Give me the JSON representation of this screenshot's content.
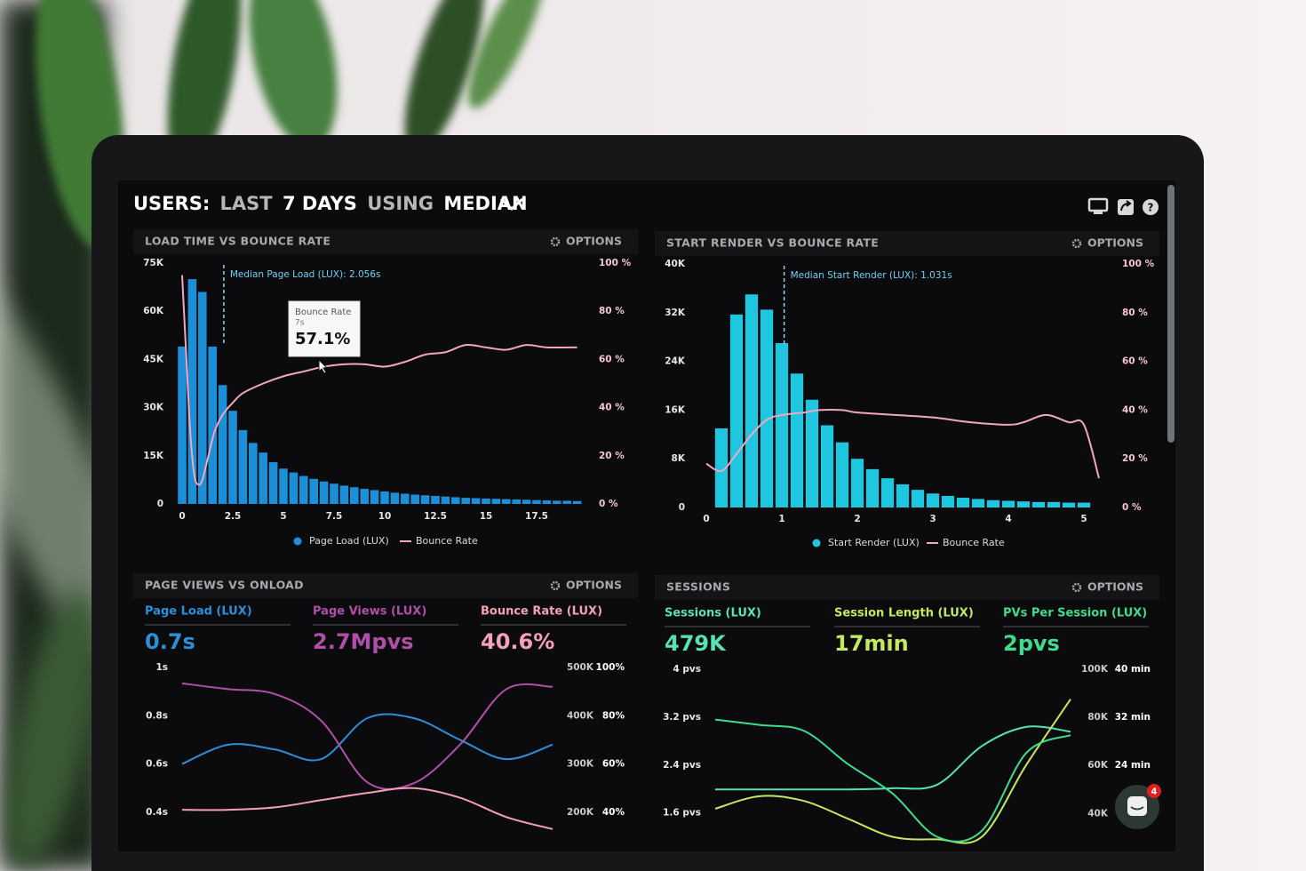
{
  "header": {
    "title_parts": [
      "USERS:",
      "LAST",
      "7 DAYS",
      "USING",
      "MEDIAN"
    ]
  },
  "chat_badge": "4",
  "chart_data": [
    {
      "type": "bar",
      "title": "LOAD TIME VS BOUNCE RATE",
      "options": "OPTIONS",
      "xlim": [
        -0.25,
        19.75
      ],
      "xticks": [
        0,
        2.5,
        5,
        7.5,
        10,
        12.5,
        15,
        17.5
      ],
      "ylim": [
        0,
        75000
      ],
      "yticks": [
        0,
        {
          "value": 15000,
          "label": "15K"
        },
        {
          "value": 30000,
          "label": "30K"
        },
        {
          "value": 45000,
          "label": "45K"
        },
        {
          "value": 60000,
          "label": "60K"
        },
        {
          "value": 75000,
          "label": "75K"
        }
      ],
      "y2lim": [
        0,
        100
      ],
      "y2ticks": [
        {
          "value": 0,
          "label": "0 %"
        },
        {
          "value": 20,
          "label": "20 %"
        },
        {
          "value": 40,
          "label": "40 %"
        },
        {
          "value": 60,
          "label": "60 %"
        },
        {
          "value": 80,
          "label": "80 %"
        },
        {
          "value": 100,
          "label": "100 %"
        }
      ],
      "annotation": {
        "text": "Median Page Load (LUX): 2.056s",
        "x": 2.056
      },
      "tooltip": {
        "title": "Bounce Rate",
        "subtitle": "7s",
        "value": "57.1%"
      },
      "series": [
        {
          "name": "Page Load (LUX)",
          "color": "#1c8fd9",
          "type": "bar",
          "x": [
            0,
            0.5,
            1,
            1.5,
            2,
            2.5,
            3,
            3.5,
            4,
            4.5,
            5,
            5.5,
            6,
            6.5,
            7,
            7.5,
            8,
            8.5,
            9,
            9.5,
            10,
            10.5,
            11,
            11.5,
            12,
            12.5,
            13,
            13.5,
            14,
            14.5,
            15,
            15.5,
            16,
            16.5,
            17,
            17.5,
            18,
            18.5,
            19,
            19.5
          ],
          "values": [
            49000,
            70000,
            66000,
            49000,
            37000,
            29000,
            23000,
            19000,
            16000,
            13000,
            11000,
            9800,
            8700,
            7800,
            7000,
            6300,
            5700,
            5200,
            4700,
            4300,
            3900,
            3500,
            3200,
            2900,
            2700,
            2500,
            2300,
            2100,
            1900,
            1800,
            1700,
            1600,
            1500,
            1400,
            1300,
            1200,
            1100,
            1000,
            1000,
            900
          ]
        },
        {
          "name": "Bounce Rate",
          "color": "#f2a7bf",
          "type": "line",
          "axis": "y2",
          "x": [
            0,
            0.2,
            0.4,
            0.6,
            0.8,
            1,
            1.3,
            1.6,
            2,
            2.5,
            3,
            4,
            5,
            6,
            7,
            8,
            9,
            10,
            11,
            12,
            13,
            14,
            15,
            16,
            17,
            18,
            19.5
          ],
          "values": [
            95,
            62,
            30,
            12,
            8,
            10,
            20,
            30,
            37,
            42,
            46,
            50,
            53,
            55,
            57,
            58,
            58,
            57,
            59,
            62,
            63,
            66,
            65,
            64,
            66,
            65,
            65
          ]
        }
      ]
    },
    {
      "type": "bar",
      "title": "START RENDER VS BOUNCE RATE",
      "options": "OPTIONS",
      "xlim": [
        -0.1,
        5.3
      ],
      "xticks": [
        0,
        1,
        2,
        3,
        4,
        5
      ],
      "ylim": [
        0,
        40000
      ],
      "yticks": [
        0,
        {
          "value": 8000,
          "label": "8K"
        },
        {
          "value": 16000,
          "label": "16K"
        },
        {
          "value": 24000,
          "label": "24K"
        },
        {
          "value": 32000,
          "label": "32K"
        },
        {
          "value": 40000,
          "label": "40K"
        }
      ],
      "y2lim": [
        0,
        100
      ],
      "y2ticks": [
        {
          "value": 0,
          "label": "0 %"
        },
        {
          "value": 20,
          "label": "20 %"
        },
        {
          "value": 40,
          "label": "40 %"
        },
        {
          "value": 60,
          "label": "60 %"
        },
        {
          "value": 80,
          "label": "80 %"
        },
        {
          "value": 100,
          "label": "100 %"
        }
      ],
      "annotation": {
        "text": "Median Start Render (LUX): 1.031s",
        "x": 1.031
      },
      "series": [
        {
          "name": "Start Render (LUX)",
          "color": "#1ec6e0",
          "type": "bar",
          "x": [
            0.2,
            0.4,
            0.6,
            0.8,
            1,
            1.2,
            1.4,
            1.6,
            1.8,
            2,
            2.2,
            2.4,
            2.6,
            2.8,
            3,
            3.2,
            3.4,
            3.6,
            3.8,
            4,
            4.2,
            4.4,
            4.6,
            4.8,
            5
          ],
          "values": [
            13000,
            31700,
            35000,
            32500,
            27000,
            22000,
            17700,
            13500,
            10700,
            8000,
            6300,
            4800,
            3800,
            2900,
            2300,
            1900,
            1600,
            1400,
            1200,
            1100,
            1000,
            900,
            900,
            800,
            800
          ]
        },
        {
          "name": "Bounce Rate",
          "color": "#f2a7bf",
          "type": "line",
          "axis": "y2",
          "x": [
            0,
            0.2,
            0.4,
            0.6,
            0.8,
            1,
            1.3,
            1.5,
            1.8,
            2,
            2.5,
            3,
            3.5,
            4,
            4.2,
            4.5,
            4.8,
            5,
            5.2
          ],
          "values": [
            18,
            15,
            22,
            30,
            36,
            38,
            39,
            40,
            40,
            39,
            38,
            37,
            35,
            34,
            35,
            38,
            35,
            34,
            12
          ]
        }
      ]
    },
    {
      "type": "line",
      "title": "PAGE VIEWS VS ONLOAD",
      "options": "OPTIONS",
      "categories": [
        null,
        null,
        null,
        null,
        null,
        null,
        null,
        null,
        null
      ],
      "ylim": [
        0.3,
        1
      ],
      "yticks": [
        {
          "value": 1,
          "label": "1s"
        },
        {
          "value": 0.8,
          "label": "0.8s"
        },
        {
          "value": 0.6,
          "label": "0.6s"
        },
        {
          "value": 0.4,
          "label": "0.4s"
        }
      ],
      "y2lim": [
        150000,
        500000
      ],
      "y2ticks": [
        {
          "value": 500000,
          "label": "500K"
        },
        {
          "value": 400000,
          "label": "400K"
        },
        {
          "value": 300000,
          "label": "300K"
        },
        {
          "value": 200000,
          "label": "200K"
        }
      ],
      "y3lim": [
        30,
        100
      ],
      "y3ticks": [
        {
          "value": 100,
          "label": "100%"
        },
        {
          "value": 80,
          "label": "80%"
        },
        {
          "value": 60,
          "label": "60%"
        },
        {
          "value": 40,
          "label": "40%"
        }
      ],
      "series": [
        {
          "name": "Page Load (LUX)",
          "kpi": "0.7s",
          "color": "#2d8fd8",
          "values": [
            0.6,
            0.68,
            0.66,
            0.62,
            0.79,
            0.79,
            0.7,
            0.62,
            0.68
          ]
        },
        {
          "name": "Page Views (LUX)",
          "kpi": "2.7Mpvs",
          "color": "#b14ea9",
          "axis": "y2",
          "values": [
            467000,
            455000,
            445000,
            390000,
            262000,
            260000,
            340000,
            455000,
            460000
          ]
        },
        {
          "name": "Bounce Rate (LUX)",
          "kpi": "40.6%",
          "color": "#f4a0b6",
          "axis": "y3",
          "values": [
            41,
            41,
            42,
            45,
            48,
            50,
            46,
            38,
            33
          ]
        }
      ]
    },
    {
      "type": "line",
      "title": "SESSIONS",
      "options": "OPTIONS",
      "categories": [
        null,
        null,
        null,
        null,
        null,
        null,
        null,
        null,
        null
      ],
      "ylim": [
        1.15,
        4
      ],
      "yticks": [
        {
          "value": 4,
          "label": "4 pvs"
        },
        {
          "value": 3.2,
          "label": "3.2 pvs"
        },
        {
          "value": 2.4,
          "label": "2.4 pvs"
        },
        {
          "value": 1.6,
          "label": "1.6 pvs"
        }
      ],
      "y2lim": [
        29000,
        100000
      ],
      "y2ticks": [
        {
          "value": 100000,
          "label": "100K"
        },
        {
          "value": 80000,
          "label": "80K"
        },
        {
          "value": 60000,
          "label": "60K"
        },
        {
          "value": 40000,
          "label": "40K"
        }
      ],
      "y3lim": [
        11.5,
        40
      ],
      "y3ticks": [
        {
          "value": 40,
          "label": "40 min"
        },
        {
          "value": 32,
          "label": "32 min"
        },
        {
          "value": 24,
          "label": "24 min"
        }
      ],
      "series": [
        {
          "name": "Sessions (LUX)",
          "kpi": "479K",
          "color": "#58e2b0",
          "axis": "y2",
          "values": [
            50000,
            50000,
            50000,
            50000,
            50500,
            52000,
            68000,
            76000,
            74000
          ]
        },
        {
          "name": "Session Length (LUX)",
          "kpi": "17min",
          "color": "#c4e860",
          "axis": "y3",
          "values": [
            16.7,
            18.8,
            18,
            15,
            12,
            11.6,
            12,
            24,
            35
          ]
        },
        {
          "name": "PVs Per Session (LUX)",
          "kpi": "2pvs",
          "color": "#3fdc8c",
          "values": [
            3.16,
            3.07,
            2.97,
            2.41,
            1.92,
            1.2,
            1.3,
            2.6,
            2.9
          ]
        }
      ]
    }
  ]
}
